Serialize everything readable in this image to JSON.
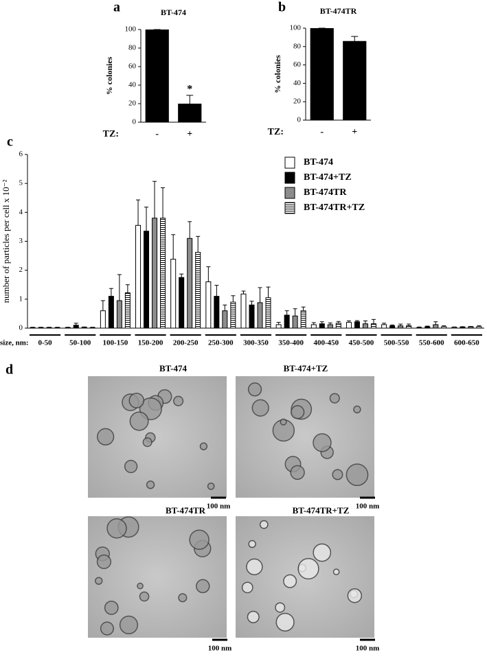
{
  "chart_data": [
    {
      "type": "bar",
      "label": "a",
      "title": "BT-474",
      "y_label": "% colonies",
      "x_label": "TZ:",
      "categories": [
        "-",
        "+"
      ],
      "values": [
        100,
        20
      ],
      "errors": [
        0,
        9
      ],
      "color": "#000000",
      "annotation": "*",
      "ylim": [
        0,
        100
      ],
      "yticks": [
        0,
        20,
        40,
        60,
        80,
        100
      ]
    },
    {
      "type": "bar",
      "label": "b",
      "title": "BT-474TR",
      "y_label": "% colonies",
      "x_label": "TZ:",
      "categories": [
        "-",
        "+"
      ],
      "values": [
        100,
        86
      ],
      "errors": [
        0,
        5
      ],
      "color": "#000000",
      "ylim": [
        0,
        100
      ],
      "yticks": [
        0,
        20,
        40,
        60,
        80,
        100
      ]
    },
    {
      "type": "grouped-bar",
      "label": "c",
      "y_label": "number of particles per cell x 10⁻²",
      "x_label": "size, nm:",
      "categories": [
        "0-50",
        "50-100",
        "100-150",
        "150-200",
        "200-250",
        "250-300",
        "300-350",
        "350-400",
        "400-450",
        "450-500",
        "500-550",
        "550-600",
        "600-650"
      ],
      "series": [
        {
          "name": "BT-474",
          "color": "#ffffff",
          "values": [
            0.02,
            0.02,
            0.6,
            3.55,
            2.38,
            1.6,
            1.18,
            0.12,
            0.12,
            0.2,
            0.12,
            0.02,
            0.03
          ],
          "errors": [
            0.01,
            0.01,
            0.35,
            0.88,
            0.85,
            0.52,
            0.1,
            0.08,
            0.07,
            0.05,
            0.05,
            0.02,
            0.01
          ]
        },
        {
          "name": "BT-474+TZ",
          "color": "#000000",
          "values": [
            0.02,
            0.1,
            1.1,
            3.35,
            1.75,
            1.1,
            0.8,
            0.45,
            0.15,
            0.22,
            0.08,
            0.05,
            0.04
          ],
          "errors": [
            0.01,
            0.07,
            0.27,
            0.83,
            0.12,
            0.38,
            0.13,
            0.15,
            0.07,
            0.04,
            0.03,
            0.02,
            0.01
          ]
        },
        {
          "name": "BT-474TR",
          "color": "#8c8c8c",
          "values": [
            0.02,
            0.03,
            0.95,
            3.8,
            3.1,
            0.6,
            0.88,
            0.42,
            0.12,
            0.15,
            0.08,
            0.12,
            0.05
          ],
          "errors": [
            0.01,
            0.01,
            0.9,
            1.27,
            0.58,
            0.2,
            0.52,
            0.25,
            0.06,
            0.1,
            0.06,
            0.1,
            0.01
          ]
        },
        {
          "name": "BT-474TR+TZ",
          "color": "#ffffff",
          "hatch": "horizontal",
          "values": [
            0.02,
            0.02,
            1.22,
            3.8,
            2.62,
            0.9,
            1.05,
            0.6,
            0.17,
            0.15,
            0.08,
            0.05,
            0.05
          ],
          "errors": [
            0.01,
            0.01,
            0.28,
            1.05,
            0.55,
            0.22,
            0.37,
            0.13,
            0.06,
            0.15,
            0.06,
            0.03,
            0.03
          ]
        }
      ],
      "legend": "upper right",
      "ylim": [
        0,
        6
      ],
      "yticks": [
        0,
        1,
        2,
        3,
        4,
        5,
        6
      ]
    }
  ],
  "micrographs": {
    "label": "d",
    "images": [
      {
        "title": "BT-474",
        "scale_bar": "100 nm"
      },
      {
        "title": "BT-474+TZ",
        "scale_bar": "100 nm"
      },
      {
        "title": "BT-474TR",
        "scale_bar": "100 nm"
      },
      {
        "title": "BT-474TR+TZ",
        "scale_bar": "100 nm"
      }
    ]
  }
}
